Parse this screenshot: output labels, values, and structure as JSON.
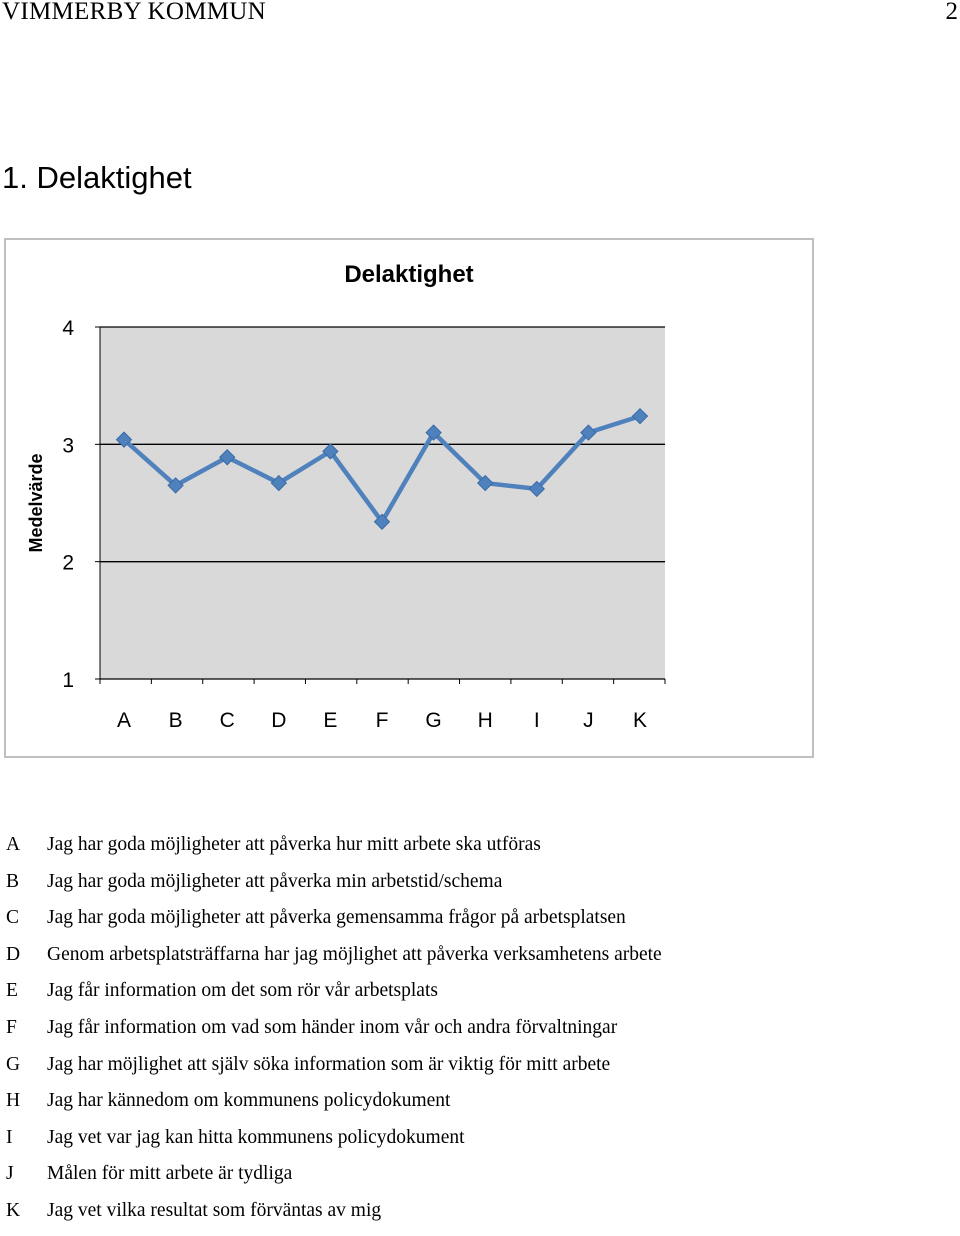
{
  "header": {
    "left": "VIMMERBY KOMMUN",
    "page_number": "2"
  },
  "section_title": "1. Delaktighet",
  "chart_data": {
    "type": "line",
    "title": "Delaktighet",
    "ylabel": "Medelvärde",
    "xlabel": "",
    "ylim": [
      1,
      4
    ],
    "yticks": [
      "1",
      "2",
      "3",
      "4"
    ],
    "grid": "horizontal",
    "categories": [
      "A",
      "B",
      "C",
      "D",
      "E",
      "F",
      "G",
      "H",
      "I",
      "J",
      "K"
    ],
    "series": [
      {
        "values": [
          3.04,
          2.65,
          2.89,
          2.67,
          2.94,
          2.34,
          3.1,
          2.67,
          2.62,
          3.1,
          3.24
        ]
      }
    ],
    "colors": {
      "line": "#4f81bd",
      "marker": "#4f81bd",
      "plot_bg": "#d9d9d9"
    }
  },
  "legend": [
    {
      "key": "A",
      "text": "Jag har goda möjligheter att påverka hur mitt arbete ska utföras"
    },
    {
      "key": "B",
      "text": "Jag har goda möjligheter att påverka min arbetstid/schema"
    },
    {
      "key": "C",
      "text": "Jag har goda möjligheter att påverka gemensamma frågor på arbetsplatsen"
    },
    {
      "key": "D",
      "text": "Genom arbetsplatsträffarna har jag möjlighet att påverka verksamhetens arbete"
    },
    {
      "key": "E",
      "text": "Jag får information om det som rör vår arbetsplats"
    },
    {
      "key": "F",
      "text": "Jag får information om vad som händer inom vår och andra förvaltningar"
    },
    {
      "key": "G",
      "text": "Jag har möjlighet att själv söka information som är viktig för mitt arbete"
    },
    {
      "key": "H",
      "text": "Jag har kännedom om kommunens policydokument"
    },
    {
      "key": "I",
      "text": "Jag vet var jag kan hitta kommunens policydokument"
    },
    {
      "key": "J",
      "text": "Målen för mitt arbete är tydliga"
    },
    {
      "key": "K",
      "text": "Jag vet vilka resultat som förväntas av mig"
    }
  ]
}
